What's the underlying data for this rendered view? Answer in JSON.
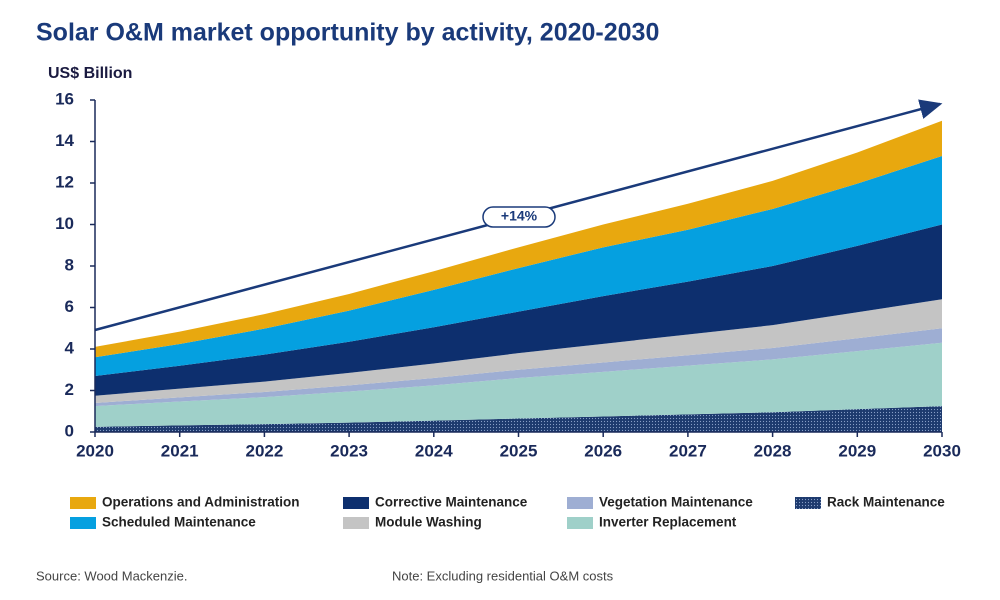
{
  "chart_data": {
    "type": "stacked_area",
    "title": "Solar O&M market opportunity by activity, 2020-2030",
    "y_label": "US$ Billion",
    "categories": [
      "2020",
      "2021",
      "2022",
      "2023",
      "2024",
      "2025",
      "2026",
      "2027",
      "2028",
      "2029",
      "2030"
    ],
    "ylim": [
      0,
      16
    ],
    "yticks": [
      0,
      2,
      4,
      6,
      8,
      10,
      12,
      14,
      16
    ],
    "series": [
      {
        "name": "Rack Maintenance",
        "color": "#1d3a6e",
        "values": [
          0.25,
          0.32,
          0.38,
          0.45,
          0.55,
          0.65,
          0.75,
          0.85,
          0.95,
          1.1,
          1.25
        ]
      },
      {
        "name": "Inverter Replacement",
        "color": "#9fd0c9",
        "values": [
          1.0,
          1.15,
          1.3,
          1.5,
          1.7,
          1.95,
          2.15,
          2.35,
          2.55,
          2.8,
          3.05
        ]
      },
      {
        "name": "Vegetation Maintenance",
        "color": "#9eaed3",
        "values": [
          0.15,
          0.2,
          0.25,
          0.3,
          0.35,
          0.4,
          0.45,
          0.5,
          0.55,
          0.62,
          0.7
        ]
      },
      {
        "name": "Module Washing",
        "color": "#c4c4c4",
        "values": [
          0.35,
          0.42,
          0.5,
          0.6,
          0.7,
          0.8,
          0.9,
          1.0,
          1.1,
          1.25,
          1.4
        ]
      },
      {
        "name": "Corrective Maintenance",
        "color": "#0d2f6e",
        "values": [
          0.95,
          1.1,
          1.3,
          1.5,
          1.75,
          2.0,
          2.3,
          2.55,
          2.85,
          3.2,
          3.6
        ]
      },
      {
        "name": "Scheduled Maintenance",
        "color": "#05a0e0",
        "values": [
          0.9,
          1.05,
          1.25,
          1.5,
          1.8,
          2.1,
          2.35,
          2.5,
          2.75,
          3.0,
          3.3
        ]
      },
      {
        "name": "Operations and Administration",
        "color": "#e8a80f",
        "values": [
          0.5,
          0.6,
          0.7,
          0.8,
          0.9,
          1.0,
          1.1,
          1.25,
          1.35,
          1.5,
          1.7
        ]
      }
    ],
    "annotation": "+14%",
    "source": "Source: Wood Mackenzie.",
    "note": "Note: Excluding residential O&M costs"
  }
}
